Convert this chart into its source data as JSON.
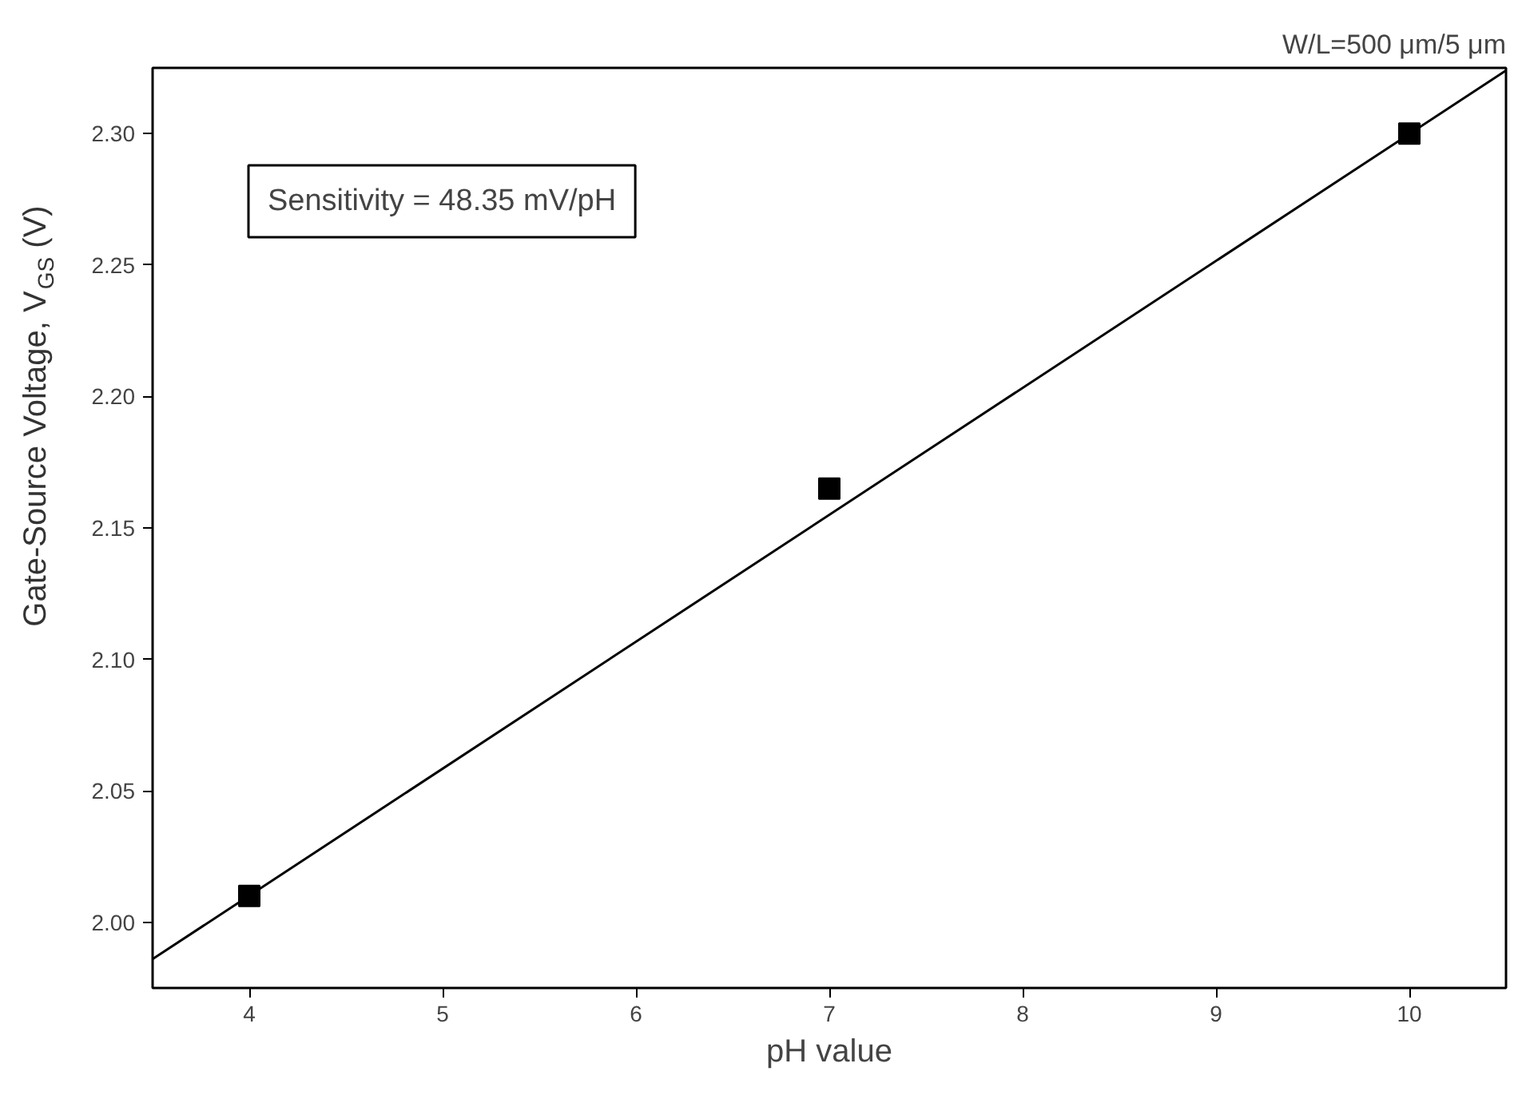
{
  "chart_data": {
    "type": "scatter",
    "title": "W/L=500 μm/5 μm",
    "xlabel": "pH value",
    "ylabel": "Gate-Source Voltage, V$_{GS}$ (V)",
    "annotations": [
      "Sensitivity = 48.35 mV/pH"
    ],
    "x": [
      4,
      7,
      10
    ],
    "series": [
      {
        "color": "#000000",
        "marker": "square",
        "values": [
          2.01,
          2.165,
          2.3
        ]
      },
      {
        "type": "line",
        "color": "#000000",
        "line_style": "solid",
        "x": [
          3.5,
          10.5
        ],
        "values": [
          1.986,
          2.324
        ]
      }
    ],
    "xlim": [
      3.5,
      10.5
    ],
    "ylim": [
      1.975,
      2.325
    ],
    "xticks": [
      4,
      5,
      6,
      7,
      8,
      9,
      10
    ],
    "yticks": [
      {
        "value": 2.0,
        "label": "2.00"
      },
      {
        "value": 2.05,
        "label": "2.05"
      },
      {
        "value": 2.1,
        "label": "2.10"
      },
      {
        "value": 2.15,
        "label": "2.15"
      },
      {
        "value": 2.2,
        "label": "2.20"
      },
      {
        "value": 2.25,
        "label": "2.25"
      },
      {
        "value": 2.3,
        "label": "2.30"
      }
    ],
    "grid": false
  }
}
